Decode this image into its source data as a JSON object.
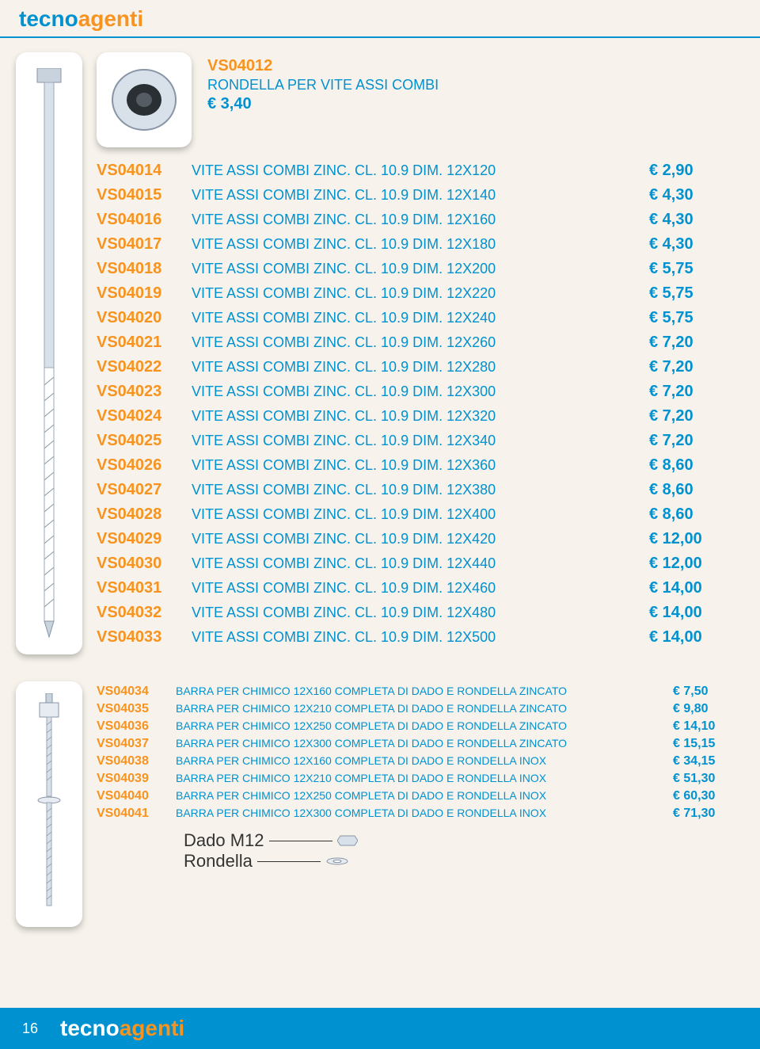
{
  "brand": {
    "part1": "tecno",
    "part2": "agenti"
  },
  "colors": {
    "blue": "#0091d0",
    "orange": "#f7931e",
    "bg": "#f7f3ec"
  },
  "featured": {
    "code": "VS04012",
    "desc": "RONDELLA  PER VITE ASSI COMBI",
    "price": "€ 3,40"
  },
  "table1": {
    "rows": [
      {
        "code": "VS04014",
        "desc": "VITE ASSI COMBI ZINC. CL. 10.9 DIM. 12X120",
        "price": "€ 2,90"
      },
      {
        "code": "VS04015",
        "desc": "VITE ASSI COMBI ZINC. CL. 10.9 DIM. 12X140",
        "price": "€ 4,30"
      },
      {
        "code": "VS04016",
        "desc": "VITE ASSI COMBI ZINC. CL. 10.9 DIM. 12X160",
        "price": "€ 4,30"
      },
      {
        "code": "VS04017",
        "desc": "VITE ASSI COMBI ZINC. CL. 10.9 DIM. 12X180",
        "price": "€ 4,30"
      },
      {
        "code": "VS04018",
        "desc": "VITE ASSI COMBI ZINC. CL. 10.9 DIM. 12X200",
        "price": "€ 5,75"
      },
      {
        "code": "VS04019",
        "desc": "VITE ASSI COMBI ZINC. CL. 10.9 DIM. 12X220",
        "price": "€ 5,75"
      },
      {
        "code": "VS04020",
        "desc": "VITE ASSI COMBI ZINC. CL. 10.9 DIM. 12X240",
        "price": "€ 5,75"
      },
      {
        "code": "VS04021",
        "desc": "VITE ASSI COMBI ZINC. CL. 10.9 DIM. 12X260",
        "price": "€ 7,20"
      },
      {
        "code": "VS04022",
        "desc": "VITE ASSI COMBI ZINC. CL. 10.9 DIM. 12X280",
        "price": "€ 7,20"
      },
      {
        "code": "VS04023",
        "desc": "VITE ASSI COMBI ZINC. CL. 10.9 DIM. 12X300",
        "price": "€ 7,20"
      },
      {
        "code": "VS04024",
        "desc": "VITE ASSI COMBI ZINC. CL. 10.9 DIM. 12X320",
        "price": "€ 7,20"
      },
      {
        "code": "VS04025",
        "desc": "VITE ASSI COMBI ZINC. CL. 10.9 DIM. 12X340",
        "price": "€ 7,20"
      },
      {
        "code": "VS04026",
        "desc": "VITE ASSI COMBI ZINC. CL. 10.9 DIM. 12X360",
        "price": "€ 8,60"
      },
      {
        "code": "VS04027",
        "desc": "VITE ASSI COMBI ZINC. CL. 10.9 DIM. 12X380",
        "price": "€ 8,60"
      },
      {
        "code": "VS04028",
        "desc": "VITE ASSI COMBI ZINC. CL. 10.9 DIM. 12X400",
        "price": "€ 8,60"
      },
      {
        "code": "VS04029",
        "desc": "VITE ASSI COMBI ZINC. CL. 10.9 DIM. 12X420",
        "price": "€ 12,00"
      },
      {
        "code": "VS04030",
        "desc": "VITE ASSI COMBI ZINC. CL. 10.9 DIM. 12X440",
        "price": "€ 12,00"
      },
      {
        "code": "VS04031",
        "desc": "VITE ASSI COMBI ZINC. CL. 10.9 DIM. 12X460",
        "price": "€ 14,00"
      },
      {
        "code": "VS04032",
        "desc": "VITE ASSI COMBI ZINC. CL. 10.9 DIM. 12X480",
        "price": "€ 14,00"
      },
      {
        "code": "VS04033",
        "desc": "VITE ASSI COMBI ZINC. CL. 10.9 DIM. 12X500",
        "price": "€ 14,00"
      }
    ]
  },
  "table2": {
    "rows": [
      {
        "code": "VS04034",
        "desc": "BARRA PER CHIMICO 12X160 COMPLETA DI DADO E RONDELLA ZINCATO",
        "price": "€ 7,50"
      },
      {
        "code": "VS04035",
        "desc": "BARRA PER CHIMICO 12X210 COMPLETA DI DADO E RONDELLA ZINCATO",
        "price": "€ 9,80"
      },
      {
        "code": "VS04036",
        "desc": "BARRA PER CHIMICO 12X250 COMPLETA DI DADO E RONDELLA ZINCATO",
        "price": "€ 14,10"
      },
      {
        "code": "VS04037",
        "desc": "BARRA PER CHIMICO 12X300 COMPLETA DI DADO E RONDELLA ZINCATO",
        "price": "€ 15,15"
      },
      {
        "code": "VS04038",
        "desc": "BARRA PER CHIMICO 12X160 COMPLETA DI DADO E RONDELLA INOX",
        "price": "€ 34,15"
      },
      {
        "code": "VS04039",
        "desc": "BARRA PER CHIMICO 12X210 COMPLETA DI DADO E RONDELLA INOX",
        "price": "€ 51,30"
      },
      {
        "code": "VS04040",
        "desc": "BARRA PER CHIMICO 12X250 COMPLETA DI DADO E RONDELLA INOX",
        "price": "€ 60,30"
      },
      {
        "code": "VS04041",
        "desc": "BARRA PER CHIMICO 12X300 COMPLETA DI DADO E RONDELLA INOX",
        "price": "€ 71,30"
      }
    ]
  },
  "legend": {
    "dado": "Dado M12",
    "rondella": "Rondella"
  },
  "page_number": "16"
}
